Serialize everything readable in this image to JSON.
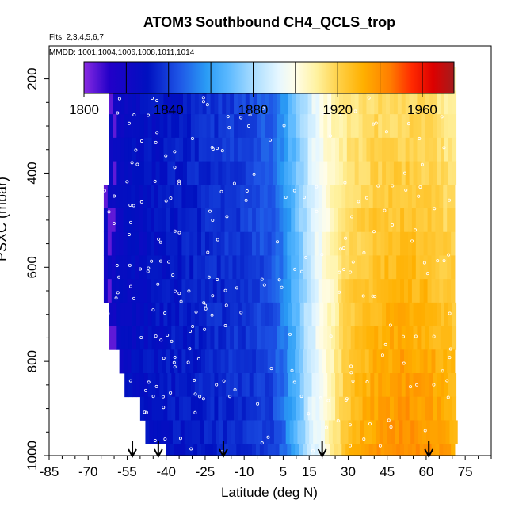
{
  "chart_data": {
    "type": "heatmap",
    "title": "ATOM3 Southbound CH4_QCLS_trop",
    "flights_label": "Flts: 2,3,4,5,6,7",
    "dates_label": "MMDD: 1001,1004,1006,1008,1011,1014",
    "xlabel": "Latitude (deg N)",
    "ylabel": "PSXC (mbar)",
    "xlim": [
      -85,
      85
    ],
    "ylim": [
      1000,
      130
    ],
    "x_ticks": [
      -85,
      -70,
      -55,
      -40,
      -25,
      -10,
      5,
      15,
      30,
      45,
      60,
      75
    ],
    "x_tick_labels": [
      "-85",
      "-70",
      "-55",
      "-40",
      "-25",
      "-10",
      "5",
      "15",
      "30",
      "45",
      "60",
      "75"
    ],
    "y_ticks": [
      200,
      400,
      600,
      800,
      1000
    ],
    "y_tick_labels": [
      "200",
      "400",
      "600",
      "800",
      "1000"
    ],
    "colorbar": {
      "min": 1800,
      "max": 1975,
      "ticks": [
        1800,
        1840,
        1880,
        1920,
        1960
      ],
      "tick_labels": [
        "1800",
        "1840",
        "1880",
        "1920",
        "1960"
      ],
      "colors": [
        {
          "value": 1800,
          "color": "#8a2be2"
        },
        {
          "value": 1812,
          "color": "#2200c8"
        },
        {
          "value": 1830,
          "color": "#0010c0"
        },
        {
          "value": 1845,
          "color": "#1e55e6"
        },
        {
          "value": 1858,
          "color": "#2a9cf5"
        },
        {
          "value": 1868,
          "color": "#5ab8ff"
        },
        {
          "value": 1880,
          "color": "#a8dcff"
        },
        {
          "value": 1892,
          "color": "#e6f7ff"
        },
        {
          "value": 1900,
          "color": "#fffde8"
        },
        {
          "value": 1910,
          "color": "#fff2a0"
        },
        {
          "value": 1920,
          "color": "#ffd24a"
        },
        {
          "value": 1932,
          "color": "#ffb000"
        },
        {
          "value": 1945,
          "color": "#ff7c00"
        },
        {
          "value": 1955,
          "color": "#ff2a00"
        },
        {
          "value": 1965,
          "color": "#dd0000"
        },
        {
          "value": 1975,
          "color": "#a51c1c"
        }
      ]
    },
    "pressure_levels": [
      200,
      250,
      300,
      350,
      400,
      450,
      500,
      550,
      600,
      650,
      700,
      750,
      800,
      850,
      900,
      950,
      1000
    ],
    "level_lat_ranges": [
      [
        -56,
        71
      ],
      [
        -62,
        71
      ],
      [
        -62,
        71
      ],
      [
        -62,
        71
      ],
      [
        -62,
        71
      ],
      [
        -64,
        71
      ],
      [
        -64,
        71
      ],
      [
        -64,
        71
      ],
      [
        -64,
        71
      ],
      [
        -64,
        71
      ],
      [
        -62,
        71
      ],
      [
        -62,
        71
      ],
      [
        -58,
        71
      ],
      [
        -56,
        71
      ],
      [
        -50,
        71
      ],
      [
        -48,
        71
      ],
      [
        -40,
        71
      ]
    ],
    "lat_gradient": {
      "latitudes": [
        -64,
        -55,
        -45,
        -35,
        -20,
        -10,
        0,
        5,
        10,
        15,
        20,
        25,
        30,
        40,
        50,
        60,
        71
      ],
      "ch4_lower": [
        1822,
        1828,
        1830,
        1831,
        1834,
        1836,
        1840,
        1850,
        1868,
        1888,
        1900,
        1915,
        1928,
        1938,
        1942,
        1940,
        1932
      ],
      "ch4_upper": [
        1822,
        1826,
        1830,
        1833,
        1838,
        1842,
        1848,
        1860,
        1875,
        1890,
        1900,
        1908,
        1912,
        1915,
        1916,
        1914,
        1908
      ]
    },
    "flight_markers_lat": [
      -53,
      -43,
      -18,
      20,
      61
    ]
  }
}
